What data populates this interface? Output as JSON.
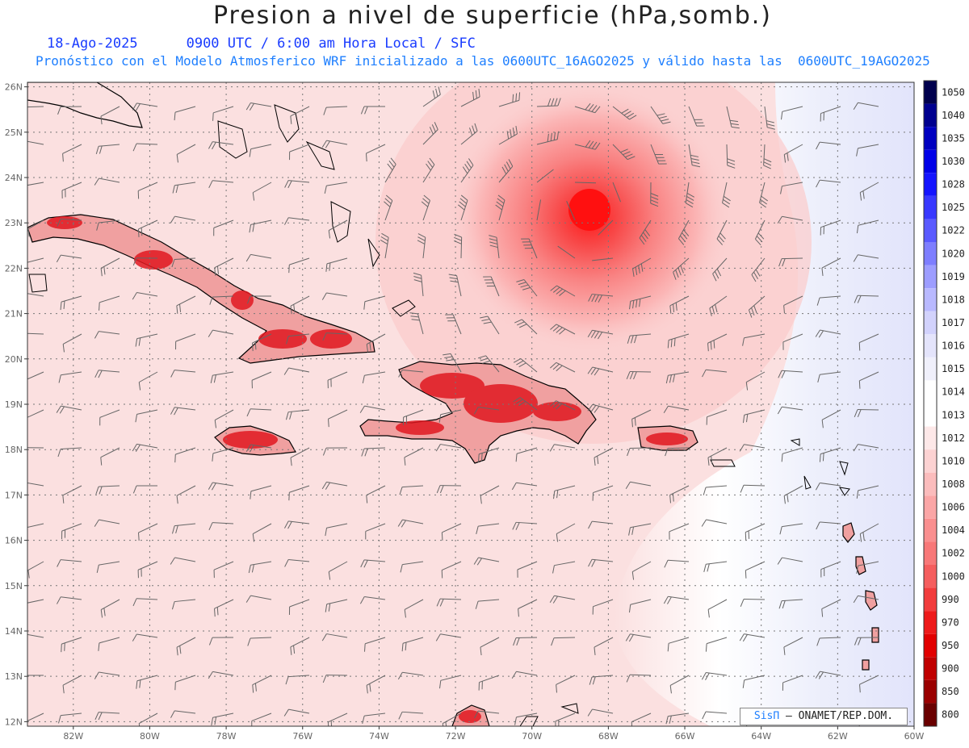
{
  "title": "Presion a nivel de superficie (hPa,somb.)",
  "subtitle": {
    "date": "18-Ago-2025",
    "time": "0900 UTC / 6:00 am Hora Local / SFC"
  },
  "forecast_line": "Pronóstico con el Modelo Atmosferico WRF inicializado a las 0600UTC_16AGO2025 y válido hasta las  0600UTC_19AGO2025",
  "credit": {
    "brand": "SisΠ",
    "text": " – ONAMET/REP.DOM."
  },
  "map": {
    "extent": {
      "lon_min": -83.2,
      "lon_max": -60.0,
      "lat_min": 11.9,
      "lat_max": 26.1
    },
    "lat_labels": [
      "26N",
      "25N",
      "24N",
      "23N",
      "22N",
      "21N",
      "20N",
      "19N",
      "18N",
      "17N",
      "16N",
      "15N",
      "14N",
      "13N",
      "12N"
    ],
    "lon_labels": [
      "82W",
      "80W",
      "78W",
      "76W",
      "74W",
      "72W",
      "70W",
      "68W",
      "66W",
      "64W",
      "62W",
      "60W"
    ],
    "storm_center": {
      "lon": -68.6,
      "lat": 23.3,
      "min_pressure_hPa": 990
    },
    "colors": {
      "land": "#e03038",
      "ocean": "#fbe0e0",
      "high": "#e6e8fb"
    }
  },
  "colorbar": {
    "levels": [
      "1050",
      "1040",
      "1035",
      "1030",
      "1028",
      "1025",
      "1022",
      "1020",
      "1019",
      "1018",
      "1017",
      "1016",
      "1015",
      "1014",
      "1013",
      "1012",
      "1010",
      "1008",
      "1006",
      "1004",
      "1002",
      "1000",
      "990",
      "970",
      "950",
      "900",
      "850",
      "800"
    ],
    "colors": [
      "#00004d",
      "#00008f",
      "#0000c0",
      "#0000e8",
      "#1414ff",
      "#3838ff",
      "#5a5aff",
      "#7e7eff",
      "#9d9dff",
      "#b9b9ff",
      "#d2d2fc",
      "#e4e4fb",
      "#f0f0fb",
      "#ffffff",
      "#ffffff",
      "#fde8e8",
      "#fcd2d2",
      "#fbbcbc",
      "#fba6a6",
      "#fa8f8f",
      "#f87878",
      "#f55e5e",
      "#f23c3c",
      "#ee1a1a",
      "#e20000",
      "#c00000",
      "#9a0000",
      "#6a0000"
    ]
  }
}
